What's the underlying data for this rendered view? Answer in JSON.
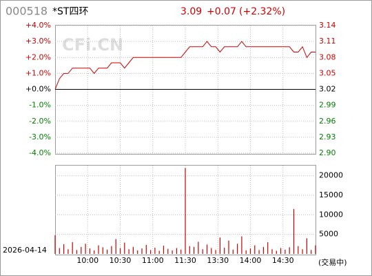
{
  "header": {
    "code": "000518",
    "name": "*ST四环",
    "price": "3.09",
    "change": "+0.07",
    "change_pct": "(+2.32%)"
  },
  "watermark": "CFi.CN",
  "date": "2026-04-14",
  "status": "(交易中)",
  "chart_data": [
    {
      "type": "line",
      "color": "#cc0000",
      "base": 3.02,
      "x": [
        0,
        4,
        8,
        12,
        16,
        20,
        24,
        28,
        32,
        36,
        40,
        44,
        48,
        52,
        56,
        60,
        64,
        68,
        72,
        76,
        80,
        84,
        88,
        92,
        96,
        100,
        104,
        108,
        112,
        116,
        120,
        124,
        128,
        132,
        136,
        140,
        144,
        148,
        152,
        156,
        160,
        164,
        168,
        172,
        176,
        180,
        184,
        188,
        192,
        196,
        200,
        204,
        208,
        212,
        216,
        220,
        224,
        228,
        232,
        236,
        240
      ],
      "values": [
        3.02,
        3.04,
        3.05,
        3.05,
        3.06,
        3.06,
        3.06,
        3.06,
        3.06,
        3.05,
        3.06,
        3.06,
        3.06,
        3.07,
        3.07,
        3.07,
        3.06,
        3.07,
        3.08,
        3.08,
        3.08,
        3.08,
        3.08,
        3.08,
        3.08,
        3.08,
        3.08,
        3.08,
        3.08,
        3.08,
        3.09,
        3.1,
        3.1,
        3.1,
        3.1,
        3.11,
        3.1,
        3.1,
        3.09,
        3.1,
        3.1,
        3.1,
        3.1,
        3.11,
        3.1,
        3.1,
        3.1,
        3.1,
        3.1,
        3.1,
        3.1,
        3.1,
        3.1,
        3.1,
        3.1,
        3.09,
        3.09,
        3.1,
        3.08,
        3.09,
        3.09
      ],
      "xlim": [
        0,
        240
      ],
      "ylim": [
        -4,
        4
      ],
      "yticks": [
        {
          "value": 4,
          "label": "+4.0%"
        },
        {
          "value": 3,
          "label": "+3.0%"
        },
        {
          "value": 2,
          "label": "+2.0%"
        },
        {
          "value": 1,
          "label": "+1.0%"
        },
        {
          "value": 0,
          "label": "+0.0%"
        },
        {
          "value": -1,
          "label": "-1.0%"
        },
        {
          "value": -2,
          "label": "-2.0%"
        },
        {
          "value": -3,
          "label": "-3.0%"
        },
        {
          "value": -4,
          "label": "-4.0%"
        }
      ],
      "y2lim": [
        2.9,
        3.14
      ],
      "y2ticks": [
        3.14,
        3.11,
        3.08,
        3.05,
        3.02,
        2.99,
        2.96,
        2.93,
        {
          "value": 2.9,
          "label": "2.90"
        }
      ],
      "grid": true
    },
    {
      "type": "bar",
      "color": "#cc0000",
      "x": [
        0,
        4,
        8,
        12,
        16,
        20,
        24,
        28,
        32,
        36,
        40,
        44,
        48,
        52,
        56,
        60,
        64,
        68,
        72,
        76,
        80,
        84,
        88,
        92,
        96,
        100,
        104,
        108,
        112,
        116,
        120,
        124,
        128,
        132,
        136,
        140,
        144,
        148,
        152,
        156,
        160,
        164,
        168,
        172,
        176,
        180,
        184,
        188,
        192,
        196,
        200,
        204,
        208,
        212,
        216,
        220,
        224,
        228,
        232,
        236,
        240
      ],
      "values": [
        4800,
        1500,
        2500,
        1200,
        3000,
        1000,
        1800,
        2600,
        1400,
        900,
        2200,
        1700,
        1100,
        2000,
        3800,
        1500,
        2900,
        1200,
        1800,
        900,
        1400,
        2300,
        1000,
        1600,
        800,
        2100,
        1300,
        900,
        1500,
        1100,
        22000,
        2000,
        1800,
        3100,
        1200,
        2400,
        1500,
        1000,
        4200,
        1600,
        3400,
        1100,
        2600,
        4500,
        900,
        1400,
        2200,
        1000,
        1800,
        3000,
        1200,
        800,
        1500,
        1100,
        1700,
        11500,
        2000,
        1200,
        4000,
        1000,
        2200
      ],
      "xlim": [
        0,
        240
      ],
      "xticks": [
        {
          "value": 30,
          "label": "10:00"
        },
        {
          "value": 60,
          "label": "10:30"
        },
        {
          "value": 90,
          "label": "11:00"
        },
        {
          "value": 120,
          "label": "11:30"
        },
        {
          "value": 150,
          "label": "13:30"
        },
        {
          "value": 180,
          "label": "14:00"
        },
        {
          "value": 210,
          "label": "14:30"
        }
      ],
      "ylim": [
        0,
        22600
      ],
      "yticks": [
        20000,
        15000,
        10000,
        5000
      ]
    }
  ]
}
